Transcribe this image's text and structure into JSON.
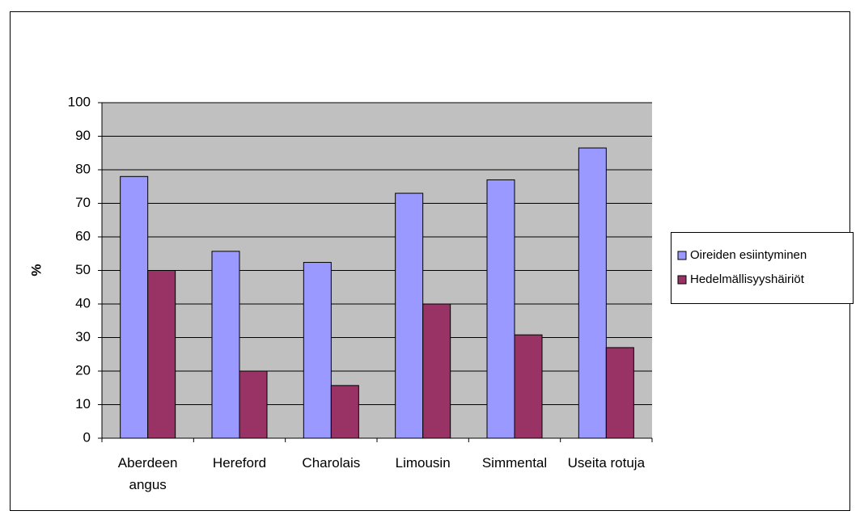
{
  "chart_data": {
    "type": "bar",
    "y_label": "%",
    "categories": [
      "Aberdeen angus",
      "Hereford",
      "Charolais",
      "Limousin",
      "Simmental",
      "Useita rotuja"
    ],
    "series": [
      {
        "name": "Oireiden esiintyminen",
        "color": "#9999ff",
        "values": [
          78,
          55.7,
          52.4,
          73,
          77,
          86.5
        ]
      },
      {
        "name": "Hedelmällisyyshäiriöt",
        "color": "#993366",
        "values": [
          50,
          20,
          15.7,
          40,
          30.8,
          27
        ]
      }
    ],
    "ylim": [
      0,
      100
    ],
    "yticks": [
      0,
      10,
      20,
      30,
      40,
      50,
      60,
      70,
      80,
      90,
      100
    ],
    "grid": true,
    "legend": "right"
  }
}
